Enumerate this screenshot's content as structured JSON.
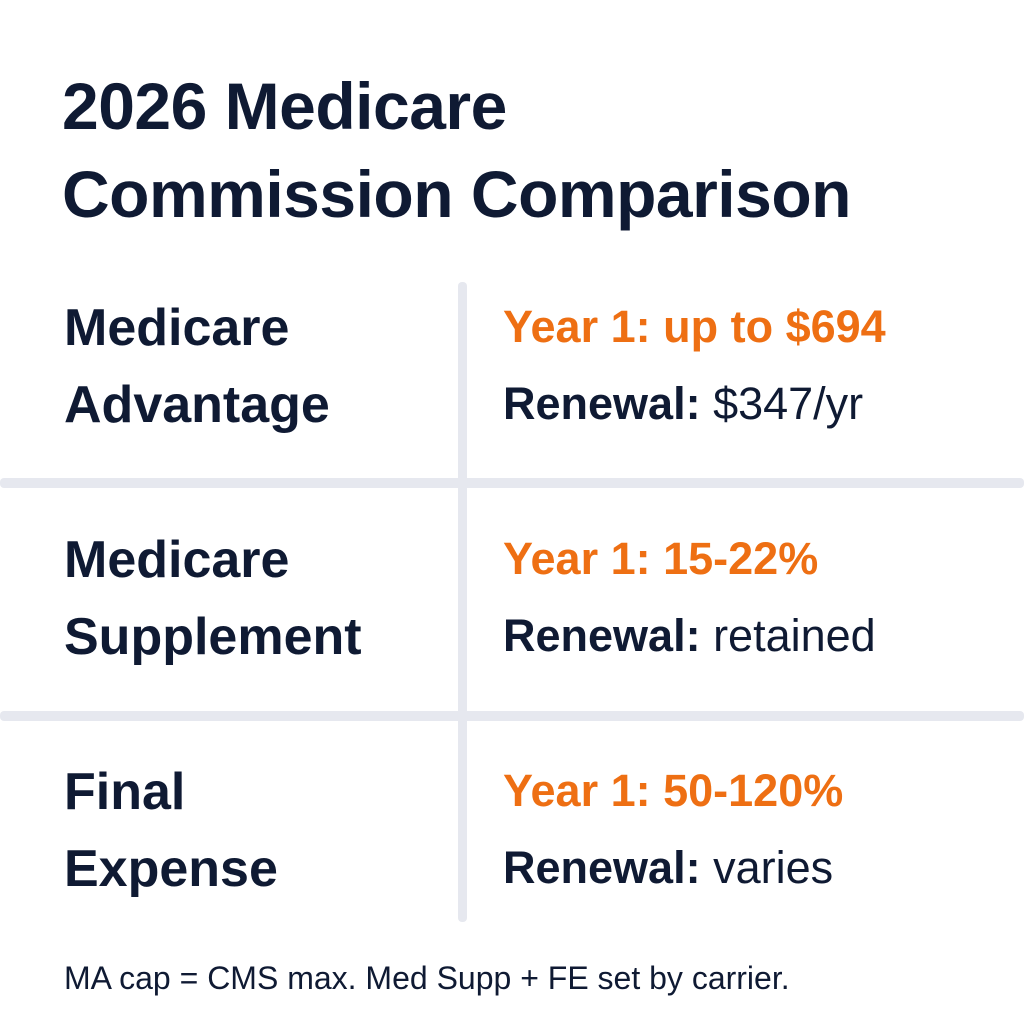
{
  "title": {
    "line1": "2026 Medicare",
    "line2": "Commission Comparison"
  },
  "rows": [
    {
      "name_line1": "Medicare",
      "name_line2": "Advantage",
      "year1": "Year 1: up to $694",
      "renewal_label": "Renewal:",
      "renewal_value": "$347/yr"
    },
    {
      "name_line1": "Medicare",
      "name_line2": "Supplement",
      "year1": "Year 1: 15-22%",
      "renewal_label": "Renewal:",
      "renewal_value": "retained"
    },
    {
      "name_line1": "Final",
      "name_line2": "Expense",
      "year1": "Year 1: 50-120%",
      "renewal_label": "Renewal:",
      "renewal_value": "varies"
    }
  ],
  "footnote": "MA cap = CMS max. Med Supp + FE set by carrier.",
  "colors": {
    "text": "#0f1a33",
    "accent": "#ee6f13",
    "divider": "#e6e8ef",
    "background": "#ffffff"
  }
}
